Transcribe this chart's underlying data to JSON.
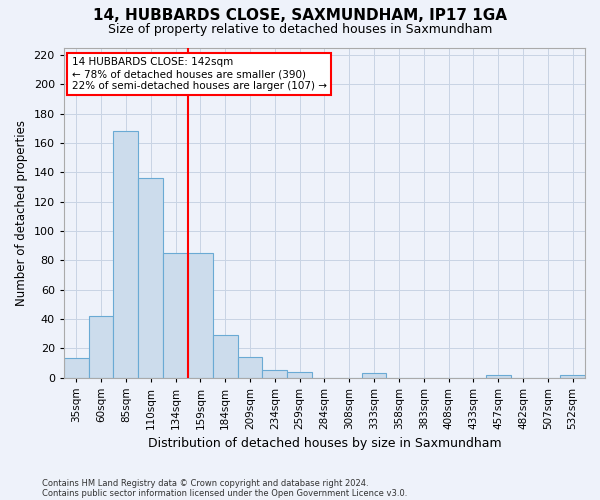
{
  "title1": "14, HUBBARDS CLOSE, SAXMUNDHAM, IP17 1GA",
  "title2": "Size of property relative to detached houses in Saxmundham",
  "xlabel": "Distribution of detached houses by size in Saxmundham",
  "ylabel": "Number of detached properties",
  "footnote1": "Contains HM Land Registry data © Crown copyright and database right 2024.",
  "footnote2": "Contains public sector information licensed under the Open Government Licence v3.0.",
  "categories": [
    "35sqm",
    "60sqm",
    "85sqm",
    "110sqm",
    "134sqm",
    "159sqm",
    "184sqm",
    "209sqm",
    "234sqm",
    "259sqm",
    "284sqm",
    "308sqm",
    "333sqm",
    "358sqm",
    "383sqm",
    "408sqm",
    "433sqm",
    "457sqm",
    "482sqm",
    "507sqm",
    "532sqm"
  ],
  "values": [
    13,
    42,
    168,
    136,
    85,
    85,
    29,
    14,
    5,
    4,
    0,
    0,
    3,
    0,
    0,
    0,
    0,
    2,
    0,
    0,
    2
  ],
  "bar_color": "#ccdcec",
  "bar_edge_color": "#6aaad4",
  "grid_color": "#c8d4e4",
  "background_color": "#eef2fa",
  "vline_x": 4.5,
  "annotation_line1": "14 HUBBARDS CLOSE: 142sqm",
  "annotation_line2": "← 78% of detached houses are smaller (390)",
  "annotation_line3": "22% of semi-detached houses are larger (107) →",
  "annotation_box_color": "white",
  "annotation_box_edge": "red",
  "vline_color": "red",
  "ylim": [
    0,
    225
  ],
  "yticks": [
    0,
    20,
    40,
    60,
    80,
    100,
    120,
    140,
    160,
    180,
    200,
    220
  ]
}
